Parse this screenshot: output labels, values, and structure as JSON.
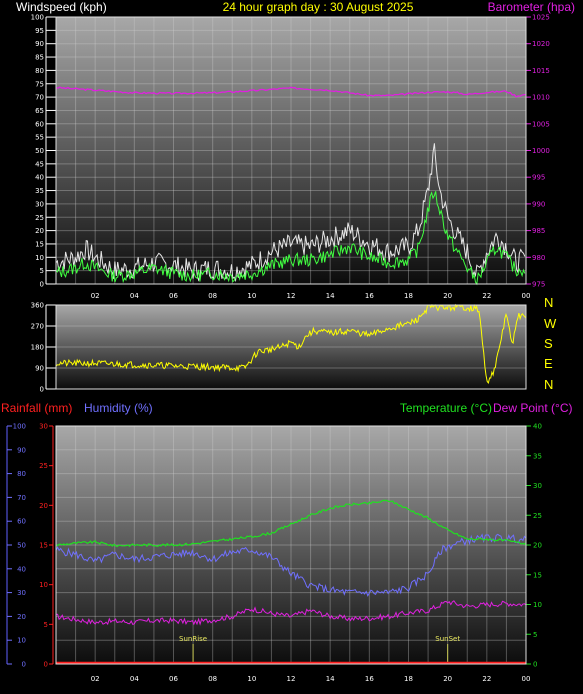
{
  "header": {
    "windspeed_label": "Windspeed (kph)",
    "title": "24 hour graph day : 30 August 2025",
    "barometer_label": "Barometer (hpa)"
  },
  "lower_header": {
    "rainfall_label": "Rainfall (mm)",
    "humidity_label": "Humidity (%)",
    "temperature_label": "Temperature (°C)",
    "dewpoint_label": "Dew Point (°C)"
  },
  "events": {
    "sunrise_label": "SunRise",
    "sunset_label": "SunSet"
  },
  "colors": {
    "windspeed": "#e6e6e6",
    "wind_average": "#40ff40",
    "barometer": "#e020e0",
    "wind_direction": "#ffff00",
    "rainfall": "#ff2020",
    "humidity": "#7070ff",
    "temperature": "#20e020",
    "dewpoint": "#e020e0",
    "title": "#ffff00"
  },
  "chart_data": [
    {
      "type": "line",
      "name": "wind-barometer",
      "x_unit": "hour",
      "x_tick_labels": [
        "02",
        "04",
        "06",
        "08",
        "10",
        "12",
        "14",
        "16",
        "18",
        "20",
        "22",
        "00"
      ],
      "left_axis": {
        "label": "Windspeed (kph)",
        "ylim": [
          0,
          100
        ],
        "ticks": [
          0,
          5,
          10,
          15,
          20,
          25,
          30,
          35,
          40,
          45,
          50,
          55,
          60,
          65,
          70,
          75,
          80,
          85,
          90,
          95,
          100
        ]
      },
      "right_axis": {
        "label": "Barometer (hpa)",
        "ylim": [
          975,
          1025
        ],
        "ticks": [
          975,
          980,
          985,
          990,
          995,
          1000,
          1005,
          1010,
          1015,
          1020,
          1025
        ]
      },
      "grid": true,
      "series": [
        {
          "name": "Windspeed (kph)",
          "axis": "left",
          "kind": "gust",
          "x": [
            0,
            1,
            1.5,
            2,
            3,
            4,
            5,
            6,
            7,
            8,
            9,
            10,
            11,
            12,
            13,
            14,
            15,
            16,
            17,
            18,
            18.5,
            19,
            19.3,
            19.6,
            20,
            20.5,
            21,
            21.5,
            22,
            22.5,
            23,
            23.5,
            24
          ],
          "y": [
            8,
            10,
            13,
            10,
            5,
            6,
            8,
            7,
            5,
            6,
            5,
            7,
            12,
            15,
            14,
            17,
            20,
            15,
            12,
            14,
            20,
            35,
            50,
            35,
            25,
            18,
            12,
            3,
            12,
            18,
            14,
            8,
            10
          ]
        },
        {
          "name": "",
          "axis": "left",
          "kind": "average",
          "x": [
            0,
            1,
            1.5,
            2,
            3,
            4,
            5,
            6,
            7,
            8,
            9,
            10,
            11,
            12,
            13,
            14,
            15,
            16,
            17,
            18,
            18.5,
            19,
            19.3,
            19.6,
            20,
            20.5,
            21,
            21.5,
            22,
            22.5,
            23,
            23.5,
            24
          ],
          "y": [
            4,
            6,
            8,
            6,
            3,
            4,
            6,
            4,
            3,
            4,
            3,
            4,
            7,
            9,
            9,
            11,
            14,
            10,
            8,
            9,
            13,
            28,
            35,
            28,
            18,
            12,
            6,
            1,
            8,
            14,
            10,
            5,
            6
          ]
        },
        {
          "name": "Barometer (hpa)",
          "axis": "right",
          "x": [
            0,
            2,
            4,
            6,
            8,
            10,
            12,
            14,
            16,
            17,
            18,
            19,
            20,
            20.5,
            21,
            22,
            23,
            23.5,
            24
          ],
          "y": [
            1011.8,
            1011.3,
            1010.8,
            1010.7,
            1010.8,
            1011.2,
            1011.7,
            1011.3,
            1010.3,
            1010.3,
            1010.6,
            1010.9,
            1011,
            1010.8,
            1010.5,
            1010.9,
            1011.1,
            1010.2,
            1010.5
          ]
        }
      ]
    },
    {
      "type": "line",
      "name": "wind-direction",
      "y_unit": "degrees",
      "ylim": [
        0,
        360
      ],
      "y_ticks": [
        0,
        90,
        180,
        270,
        360
      ],
      "compass_labels": [
        "N",
        "W",
        "S",
        "E",
        "N"
      ],
      "series": [
        {
          "name": "Wind direction",
          "x": [
            0,
            2,
            9.6,
            9.8,
            10.3,
            11,
            11.5,
            12,
            12.4,
            12.8,
            13.2,
            14,
            15,
            16,
            17,
            17.5,
            18,
            18.5,
            19,
            19.5,
            20,
            20.5,
            21,
            21.6,
            22,
            22.2,
            22.4,
            22.7,
            23,
            23.3,
            23.6,
            24
          ],
          "y": [
            110,
            110,
            90,
            105,
            160,
            170,
            180,
            200,
            180,
            230,
            250,
            240,
            250,
            230,
            260,
            270,
            280,
            300,
            350,
            350,
            350,
            350,
            350,
            340,
            20,
            60,
            80,
            200,
            330,
            180,
            320,
            300
          ]
        }
      ]
    },
    {
      "type": "line",
      "name": "rain-humidity-temperature",
      "x_tick_labels": [
        "02",
        "04",
        "06",
        "08",
        "10",
        "12",
        "14",
        "16",
        "18",
        "20",
        "22",
        "00"
      ],
      "left_axes": [
        {
          "label": "Humidity (%)",
          "ylim": [
            0,
            100
          ],
          "ticks": [
            0,
            10,
            20,
            30,
            40,
            50,
            60,
            70,
            80,
            90,
            100
          ]
        },
        {
          "label": "Rainfall (mm)",
          "ylim": [
            0,
            30
          ],
          "ticks": [
            0,
            5,
            10,
            15,
            20,
            25,
            30
          ]
        }
      ],
      "right_axis": {
        "label": "Temperature (°C)",
        "ylim": [
          0,
          40
        ],
        "ticks": [
          0,
          5,
          10,
          15,
          20,
          25,
          30,
          35,
          40
        ]
      },
      "grid": true,
      "series": [
        {
          "name": "Humidity (%)",
          "axis": "humidity",
          "x": [
            0,
            1,
            2,
            3,
            4,
            5,
            6,
            7,
            8,
            9,
            10,
            11,
            12,
            13,
            14,
            15,
            16,
            17,
            18,
            19,
            19.7,
            20.2,
            21,
            22,
            23,
            24
          ],
          "y": [
            48,
            46,
            43,
            46,
            44,
            45,
            46,
            47,
            44,
            47,
            48,
            45,
            38,
            33,
            31,
            30,
            30,
            30,
            32,
            38,
            48,
            50,
            52,
            53,
            53,
            52
          ]
        },
        {
          "name": "Temperature (°C)",
          "axis": "temperature",
          "x": [
            0,
            1,
            2,
            3,
            4,
            5,
            6,
            7,
            8,
            9,
            10,
            11,
            12,
            13,
            14,
            15,
            16,
            17,
            18,
            19,
            20,
            21,
            22,
            23,
            24
          ],
          "y": [
            20,
            20.3,
            20.5,
            19.9,
            20,
            20,
            20,
            20.2,
            20.6,
            21,
            21.4,
            22,
            23.5,
            25,
            26.2,
            26.8,
            27,
            27.5,
            26,
            24.5,
            22.5,
            21,
            21,
            20.7,
            20.2
          ]
        },
        {
          "name": "Dew Point (°C)",
          "axis": "temperature",
          "x": [
            0,
            1,
            2,
            3,
            4,
            5,
            6,
            7,
            8,
            9,
            10,
            11,
            12,
            13,
            14,
            15,
            16,
            17,
            18,
            19,
            20,
            21,
            22,
            23,
            24
          ],
          "y": [
            8,
            7.5,
            7,
            7.2,
            7,
            7.3,
            7.3,
            7,
            7.4,
            8,
            9.3,
            8.5,
            8,
            9,
            8,
            7.6,
            7.7,
            8,
            8.6,
            9,
            10.5,
            9.7,
            10,
            10.2,
            10
          ]
        },
        {
          "name": "Rainfall (mm)",
          "axis": "rainfall",
          "x": [
            0,
            24
          ],
          "y": [
            0,
            0
          ]
        }
      ],
      "annotations": [
        {
          "text": "SunRise",
          "x": 7
        },
        {
          "text": "SunSet",
          "x": 20
        }
      ]
    }
  ]
}
